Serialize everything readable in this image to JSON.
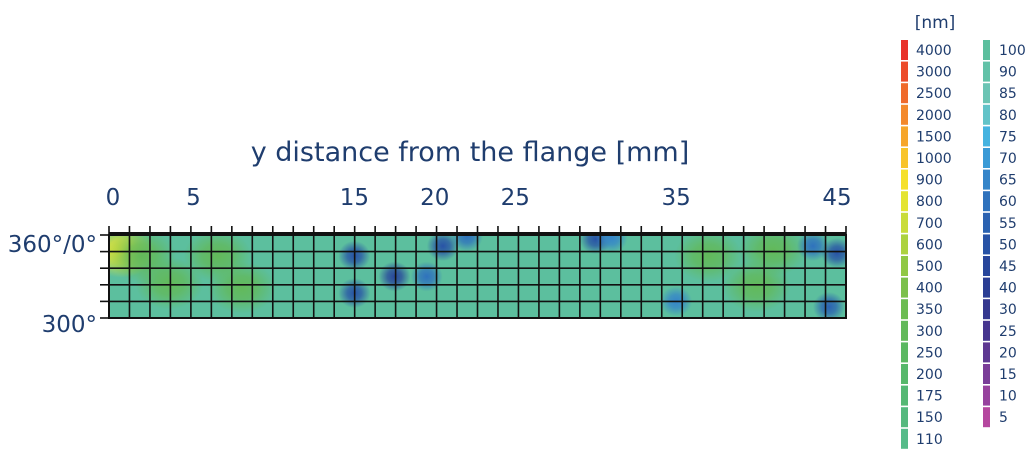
{
  "chart_data": {
    "type": "heatmap",
    "title": "y distance from the flange [mm]",
    "xlabel": "y distance from the flange [mm]",
    "x_ticks": [
      "0",
      "5",
      "15",
      "20",
      "25",
      "35",
      "45"
    ],
    "x_tick_values": [
      0,
      5,
      15,
      20,
      25,
      35,
      45
    ],
    "xlim": [
      0,
      45
    ],
    "y_ticks": [
      "360°/0°",
      "300°"
    ],
    "ylim": [
      300,
      360
    ],
    "grid": true,
    "grid_columns": 36,
    "grid_rows": 5,
    "baseline_value_nm": 100,
    "base_color": "#5cbf9e",
    "features": [
      {
        "x": 0.5,
        "y": 348,
        "value": 800
      },
      {
        "x": 1.8,
        "y": 345,
        "value": 300
      },
      {
        "x": 6.5,
        "y": 345,
        "value": 300
      },
      {
        "x": 8,
        "y": 322,
        "value": 300
      },
      {
        "x": 3.5,
        "y": 325,
        "value": 300
      },
      {
        "x": 15,
        "y": 345,
        "value": 50
      },
      {
        "x": 15,
        "y": 318,
        "value": 50
      },
      {
        "x": 17.5,
        "y": 330,
        "value": 45
      },
      {
        "x": 19.5,
        "y": 330,
        "value": 60
      },
      {
        "x": 20.5,
        "y": 352,
        "value": 50
      },
      {
        "x": 22,
        "y": 359,
        "value": 60
      },
      {
        "x": 30,
        "y": 357,
        "value": 50
      },
      {
        "x": 31,
        "y": 358,
        "value": 65
      },
      {
        "x": 37,
        "y": 345,
        "value": 300
      },
      {
        "x": 40,
        "y": 323,
        "value": 300
      },
      {
        "x": 41,
        "y": 349,
        "value": 300
      },
      {
        "x": 43.5,
        "y": 352,
        "value": 60
      },
      {
        "x": 45,
        "y": 347,
        "value": 50
      },
      {
        "x": 44.5,
        "y": 308,
        "value": 55
      },
      {
        "x": 35,
        "y": 312,
        "value": 65
      }
    ],
    "legend": {
      "unit": "[nm]",
      "placement": "right",
      "left_column": [
        {
          "label": "4000",
          "color": "#e8322a"
        },
        {
          "label": "3000",
          "color": "#ec4b2a"
        },
        {
          "label": "2500",
          "color": "#ef6a2b"
        },
        {
          "label": "2000",
          "color": "#f3892c"
        },
        {
          "label": "1500",
          "color": "#f6a62b"
        },
        {
          "label": "1000",
          "color": "#f8c42a"
        },
        {
          "label": "900",
          "color": "#f5e02a"
        },
        {
          "label": "800",
          "color": "#e4e432"
        },
        {
          "label": "700",
          "color": "#c9dc3a"
        },
        {
          "label": "600",
          "color": "#acd23f"
        },
        {
          "label": "500",
          "color": "#90c844"
        },
        {
          "label": "400",
          "color": "#7bc04b"
        },
        {
          "label": "350",
          "color": "#6cbc52"
        },
        {
          "label": "300",
          "color": "#62b95a"
        },
        {
          "label": "250",
          "color": "#5bb862"
        },
        {
          "label": "200",
          "color": "#57b86b"
        },
        {
          "label": "175",
          "color": "#55b874"
        },
        {
          "label": "150",
          "color": "#55b97e"
        },
        {
          "label": "110",
          "color": "#56bb89"
        }
      ],
      "right_column": [
        {
          "label": "100",
          "color": "#5cbf9e"
        },
        {
          "label": "90",
          "color": "#62c2a8"
        },
        {
          "label": "85",
          "color": "#6bc4b4"
        },
        {
          "label": "80",
          "color": "#62c3c8"
        },
        {
          "label": "75",
          "color": "#45b3e0"
        },
        {
          "label": "70",
          "color": "#3a9ad6"
        },
        {
          "label": "65",
          "color": "#3585c9"
        },
        {
          "label": "60",
          "color": "#2f72bd"
        },
        {
          "label": "55",
          "color": "#2b62b1"
        },
        {
          "label": "50",
          "color": "#2853a6"
        },
        {
          "label": "45",
          "color": "#28469b"
        },
        {
          "label": "40",
          "color": "#2b3e94"
        },
        {
          "label": "30",
          "color": "#35388f"
        },
        {
          "label": "25",
          "color": "#46358f"
        },
        {
          "label": "20",
          "color": "#5e3892"
        },
        {
          "label": "15",
          "color": "#7a3d98"
        },
        {
          "label": "10",
          "color": "#97429e"
        },
        {
          "label": "5",
          "color": "#b5479f"
        }
      ]
    }
  }
}
